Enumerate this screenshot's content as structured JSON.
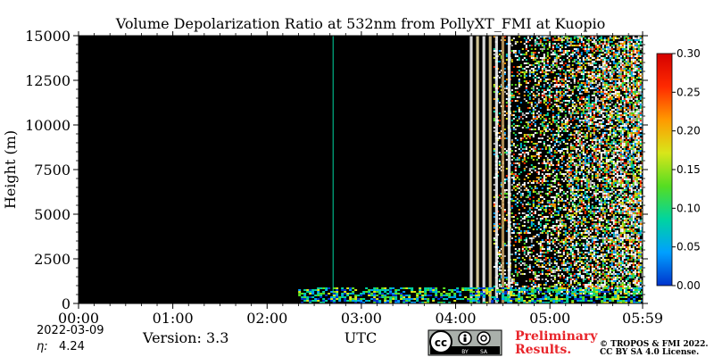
{
  "chart_data": {
    "type": "heatmap",
    "title": "Volume Depolarization Ratio at 532nm from PollyXT_FMI at Kuopio",
    "xlabel": "UTC",
    "ylabel": "Height (m)",
    "x_ticks": [
      "00:00",
      "01:00",
      "02:00",
      "03:00",
      "04:00",
      "05:00",
      "05:59"
    ],
    "y_ticks": [
      "0",
      "2500",
      "5000",
      "7500",
      "10000",
      "12500",
      "15000"
    ],
    "x_range_hours": [
      0,
      5.983
    ],
    "y_range_m": [
      0,
      15000
    ],
    "colorbar": {
      "range": [
        0.0,
        0.3
      ],
      "ticks": [
        "0.00",
        "0.05",
        "0.10",
        "0.15",
        "0.20",
        "0.25",
        "0.30"
      ],
      "colors": [
        "#0033cc",
        "#00a0ff",
        "#00d4a0",
        "#55dd22",
        "#d8e61a",
        "#ff9a00",
        "#ff2a00",
        "#d40000"
      ]
    },
    "background_color": "#000000",
    "features": [
      {
        "label": "low-level signal",
        "x_start_hours": 2.33,
        "x_end_hours": 5.98,
        "height_max_m": 900
      },
      {
        "label": "thin vertical line",
        "x_hours": 2.7
      },
      {
        "label": "vertical stripes",
        "x_start_hours": 4.15,
        "x_end_hours": 4.62
      },
      {
        "label": "noisy upper region",
        "x_start_hours": 4.4,
        "x_end_hours": 5.98,
        "height_max_m": 15000
      }
    ]
  },
  "footer": {
    "date": "2022-03-09",
    "eta_label": "η:",
    "eta_value": "4.24",
    "version": "Version: 3.3",
    "cc_badge": "cc-by-sa-badge",
    "preliminary_line1": "Preliminary",
    "preliminary_line2": "Results.",
    "copyright_line1": "© TROPOS & FMI 2022.",
    "copyright_line2": "CC BY SA 4.0 License."
  }
}
